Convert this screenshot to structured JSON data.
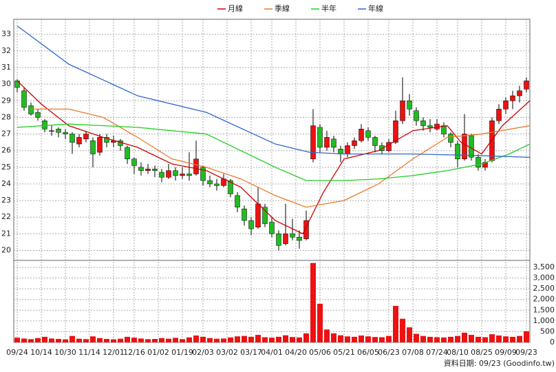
{
  "chart_data": {
    "type": "candlestick",
    "series": [
      {
        "name": "月線",
        "color": "#cc0000",
        "x": [
          0,
          3.5,
          7.5,
          12.5,
          17.5,
          22.5,
          27.5,
          32.5,
          37.5,
          41.5,
          44.5,
          47.5,
          52.5,
          57.5,
          62.5,
          64.5,
          67.5,
          70.5,
          74.5
        ],
        "values": [
          30.2,
          28.8,
          27.5,
          26.8,
          26.2,
          25.2,
          24.8,
          23.8,
          21.8,
          21.0,
          23.5,
          25.5,
          26.0,
          27.2,
          27.5,
          26.5,
          25.8,
          27.5,
          29.0
        ]
      },
      {
        "name": "季線",
        "color": "#e87a2a",
        "x": [
          2,
          7.5,
          12.5,
          17.5,
          22.5,
          27.5,
          32.5,
          37.5,
          42,
          47.5,
          52.5,
          57.5,
          62.5,
          67.5,
          74.5
        ],
        "values": [
          28.5,
          28.5,
          28.0,
          26.8,
          25.5,
          25.0,
          24.3,
          23.3,
          22.6,
          23.0,
          24.0,
          25.5,
          26.8,
          27.0,
          27.5
        ]
      },
      {
        "name": "半年",
        "color": "#22cc22",
        "x": [
          0,
          7.5,
          17.5,
          27.5,
          32.5,
          37.5,
          42,
          47.5,
          52.5,
          57.5,
          62.5,
          67.5,
          71.5,
          74.5
        ],
        "values": [
          27.4,
          27.6,
          27.4,
          27.0,
          26.0,
          25.0,
          24.2,
          24.2,
          24.3,
          24.5,
          24.8,
          25.2,
          25.8,
          26.4
        ]
      },
      {
        "name": "年線",
        "color": "#2a66cc",
        "x": [
          0,
          7.5,
          17.5,
          27.5,
          37.5,
          42.5,
          47.5,
          57.5,
          67.5,
          74.5
        ],
        "values": [
          33.5,
          31.2,
          29.3,
          28.3,
          26.4,
          25.9,
          25.8,
          25.8,
          25.7,
          25.6
        ]
      }
    ],
    "ohlc": [
      [
        30.2,
        30.3,
        29.5,
        29.8
      ],
      [
        29.6,
        29.8,
        28.4,
        28.6
      ],
      [
        28.7,
        28.9,
        28.1,
        28.2
      ],
      [
        28.3,
        28.5,
        27.8,
        28.0
      ],
      [
        27.8,
        27.9,
        27.1,
        27.3
      ],
      [
        27.2,
        27.5,
        26.9,
        27.2
      ],
      [
        27.3,
        27.4,
        26.8,
        27.1
      ],
      [
        27.1,
        27.3,
        26.7,
        27.0
      ],
      [
        27.0,
        27.1,
        25.8,
        26.5
      ],
      [
        26.4,
        27.0,
        26.2,
        26.8
      ],
      [
        26.7,
        27.2,
        26.5,
        27.0
      ],
      [
        26.6,
        26.8,
        25.0,
        25.8
      ],
      [
        25.9,
        27.0,
        25.7,
        26.8
      ],
      [
        26.8,
        27.0,
        26.2,
        26.5
      ],
      [
        26.5,
        26.9,
        26.2,
        26.6
      ],
      [
        26.6,
        26.7,
        26.0,
        26.3
      ],
      [
        26.2,
        26.3,
        25.2,
        25.5
      ],
      [
        25.5,
        25.6,
        24.6,
        25.1
      ],
      [
        25.0,
        25.3,
        24.5,
        24.8
      ],
      [
        24.8,
        25.2,
        24.6,
        24.9
      ],
      [
        24.9,
        25.1,
        24.4,
        24.8
      ],
      [
        24.7,
        24.9,
        24.1,
        24.4
      ],
      [
        24.4,
        25.2,
        24.3,
        24.8
      ],
      [
        24.8,
        25.0,
        24.2,
        24.5
      ],
      [
        24.5,
        25.0,
        24.3,
        24.6
      ],
      [
        24.6,
        25.9,
        24.2,
        24.5
      ],
      [
        24.6,
        26.6,
        24.5,
        25.5
      ],
      [
        25.0,
        25.1,
        23.9,
        24.2
      ],
      [
        24.2,
        24.5,
        23.8,
        24.0
      ],
      [
        24.0,
        24.3,
        23.6,
        23.9
      ],
      [
        23.9,
        24.6,
        23.8,
        24.3
      ],
      [
        24.2,
        24.3,
        23.2,
        23.4
      ],
      [
        23.3,
        23.5,
        22.3,
        22.6
      ],
      [
        22.5,
        22.7,
        21.5,
        21.8
      ],
      [
        21.8,
        22.0,
        20.9,
        21.3
      ],
      [
        21.4,
        23.8,
        21.3,
        22.8
      ],
      [
        22.6,
        22.8,
        21.4,
        21.6
      ],
      [
        21.7,
        22.0,
        20.8,
        21.0
      ],
      [
        21.0,
        21.2,
        20.0,
        20.3
      ],
      [
        20.4,
        22.8,
        20.3,
        21.0
      ],
      [
        21.0,
        21.9,
        20.6,
        20.8
      ],
      [
        20.8,
        21.2,
        20.1,
        20.6
      ],
      [
        20.7,
        22.4,
        20.6,
        21.8
      ],
      [
        25.5,
        28.5,
        25.3,
        27.5
      ],
      [
        27.4,
        27.6,
        25.9,
        26.2
      ],
      [
        26.2,
        27.2,
        26.0,
        26.8
      ],
      [
        26.7,
        26.9,
        25.9,
        26.2
      ],
      [
        26.1,
        26.3,
        25.3,
        25.8
      ],
      [
        25.8,
        26.5,
        25.6,
        26.3
      ],
      [
        26.3,
        26.8,
        26.1,
        26.6
      ],
      [
        26.6,
        27.6,
        26.5,
        27.3
      ],
      [
        27.2,
        27.4,
        26.6,
        26.8
      ],
      [
        26.8,
        26.9,
        25.9,
        26.3
      ],
      [
        26.3,
        26.5,
        25.8,
        26.0
      ],
      [
        26.0,
        26.7,
        25.9,
        26.5
      ],
      [
        26.5,
        28.4,
        26.4,
        27.8
      ],
      [
        27.8,
        30.4,
        27.6,
        29.0
      ],
      [
        29.0,
        29.4,
        28.1,
        28.5
      ],
      [
        28.4,
        28.6,
        27.5,
        27.8
      ],
      [
        27.8,
        28.0,
        27.2,
        27.5
      ],
      [
        27.5,
        27.9,
        27.1,
        27.4
      ],
      [
        27.3,
        27.9,
        27.2,
        27.6
      ],
      [
        27.5,
        27.7,
        26.8,
        27.0
      ],
      [
        27.0,
        27.1,
        26.2,
        26.5
      ],
      [
        26.4,
        26.6,
        25.0,
        25.5
      ],
      [
        25.5,
        28.2,
        25.4,
        27.0
      ],
      [
        26.9,
        27.0,
        25.4,
        25.6
      ],
      [
        25.6,
        25.8,
        24.8,
        25.0
      ],
      [
        25.0,
        25.5,
        24.8,
        25.3
      ],
      [
        25.4,
        28.0,
        25.3,
        27.8
      ],
      [
        27.8,
        28.8,
        27.6,
        28.5
      ],
      [
        28.5,
        29.2,
        28.2,
        29.0
      ],
      [
        29.0,
        29.6,
        28.5,
        29.3
      ],
      [
        29.3,
        29.9,
        28.9,
        29.6
      ],
      [
        29.7,
        30.4,
        29.5,
        30.2
      ]
    ],
    "volume": [
      220,
      180,
      150,
      200,
      260,
      180,
      160,
      140,
      300,
      170,
      150,
      280,
      200,
      160,
      140,
      170,
      260,
      220,
      180,
      150,
      160,
      200,
      170,
      210,
      150,
      230,
      320,
      260,
      200,
      170,
      180,
      230,
      280,
      300,
      260,
      350,
      240,
      220,
      260,
      330,
      250,
      230,
      420,
      3700,
      1800,
      600,
      420,
      330,
      280,
      260,
      320,
      280,
      250,
      240,
      300,
      1700,
      1100,
      700,
      400,
      300,
      260,
      240,
      230,
      260,
      300,
      450,
      350,
      260,
      240,
      380,
      320,
      280,
      260,
      300,
      520
    ],
    "xlim": [
      -0.5,
      74.5
    ],
    "xticks": [
      {
        "value": 0,
        "label": "09/24"
      },
      {
        "value": 3.5,
        "label": "10/14"
      },
      {
        "value": 7,
        "label": "10/30"
      },
      {
        "value": 10.5,
        "label": "11/14"
      },
      {
        "value": 14,
        "label": "12/01"
      },
      {
        "value": 17,
        "label": "12/16"
      },
      {
        "value": 20.5,
        "label": "01/02"
      },
      {
        "value": 24,
        "label": "01/19"
      },
      {
        "value": 27,
        "label": "02/03"
      },
      {
        "value": 30.5,
        "label": "03/02"
      },
      {
        "value": 34,
        "label": "03/17"
      },
      {
        "value": 37,
        "label": "04/01"
      },
      {
        "value": 40.5,
        "label": "04/20"
      },
      {
        "value": 44,
        "label": "05/06"
      },
      {
        "value": 47.5,
        "label": "05/21"
      },
      {
        "value": 51,
        "label": "06/05"
      },
      {
        "value": 54,
        "label": "06/23"
      },
      {
        "value": 57.5,
        "label": "07/08"
      },
      {
        "value": 61,
        "label": "07/24"
      },
      {
        "value": 64,
        "label": "08/10"
      },
      {
        "value": 67.5,
        "label": "08/25"
      },
      {
        "value": 71,
        "label": "09/09"
      },
      {
        "value": 74,
        "label": "09/23"
      }
    ],
    "ylim": [
      19.4,
      33.9
    ],
    "yticks": [
      20,
      21,
      22,
      23,
      24,
      25,
      26,
      27,
      28,
      29,
      30,
      31,
      32,
      33
    ],
    "y2lim": [
      0,
      3820
    ],
    "y2ticks": [
      0,
      500,
      {
        "value": 1000,
        "label": "1,000"
      },
      {
        "value": 1500,
        "label": "1,500"
      },
      {
        "value": 2000,
        "label": "2,000"
      },
      {
        "value": 2500,
        "label": "2,500"
      },
      {
        "value": 3000,
        "label": "3,000"
      },
      {
        "value": 3500,
        "label": "3,500"
      }
    ],
    "up_color": "#ee1111",
    "down_color": "#22bb22",
    "volume_color": "#ee1111",
    "grid": true,
    "footer": "資料日期: 09/23  (Goodinfo.tw)"
  }
}
